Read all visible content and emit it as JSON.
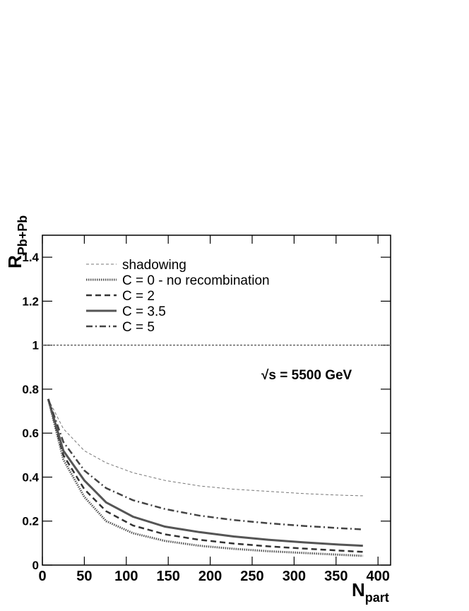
{
  "chart_data": {
    "type": "line",
    "x_label": {
      "main": "N",
      "sub": "part"
    },
    "y_label": {
      "main": "R",
      "sub": "Pb+Pb"
    },
    "annotation": "√s = 5500 GeV",
    "reference_line": 1,
    "reference_color": "#666666",
    "x": [
      7,
      25,
      50,
      76,
      108,
      146,
      187,
      228,
      270,
      312,
      354,
      382
    ],
    "series": [
      {
        "name": "shadowing",
        "color": "#777777",
        "width": 1,
        "dash": "4,3",
        "values": [
          0.755,
          0.62,
          0.52,
          0.465,
          0.42,
          0.385,
          0.36,
          0.345,
          0.335,
          0.325,
          0.318,
          0.315
        ]
      },
      {
        "name": "C = 0 - no recombination",
        "color": "#555555",
        "width": 3,
        "dash": "1.5,1.5",
        "values": [
          0.755,
          0.48,
          0.31,
          0.2,
          0.145,
          0.11,
          0.088,
          0.074,
          0.063,
          0.055,
          0.047,
          0.042
        ]
      },
      {
        "name": "C = 2",
        "color": "#333333",
        "width": 2.5,
        "dash": "8,5",
        "values": [
          0.755,
          0.5,
          0.345,
          0.245,
          0.18,
          0.14,
          0.115,
          0.098,
          0.085,
          0.075,
          0.066,
          0.06
        ]
      },
      {
        "name": "C = 3.5",
        "color": "#555555",
        "width": 3,
        "dash": "",
        "values": [
          0.755,
          0.52,
          0.385,
          0.285,
          0.22,
          0.175,
          0.15,
          0.13,
          0.115,
          0.103,
          0.093,
          0.088
        ]
      },
      {
        "name": "C = 5",
        "color": "#444444",
        "width": 2.5,
        "dash": "9,4,2,4",
        "values": [
          0.755,
          0.56,
          0.43,
          0.35,
          0.295,
          0.255,
          0.225,
          0.205,
          0.19,
          0.178,
          0.168,
          0.162
        ]
      }
    ],
    "xlim": [
      0,
      415
    ],
    "ylim": [
      0,
      1.5
    ],
    "xticks": [
      0,
      50,
      100,
      150,
      200,
      250,
      300,
      350,
      400
    ],
    "yticks": [
      0,
      0.2,
      0.4,
      0.6,
      0.8,
      1,
      1.2,
      1.4
    ]
  }
}
